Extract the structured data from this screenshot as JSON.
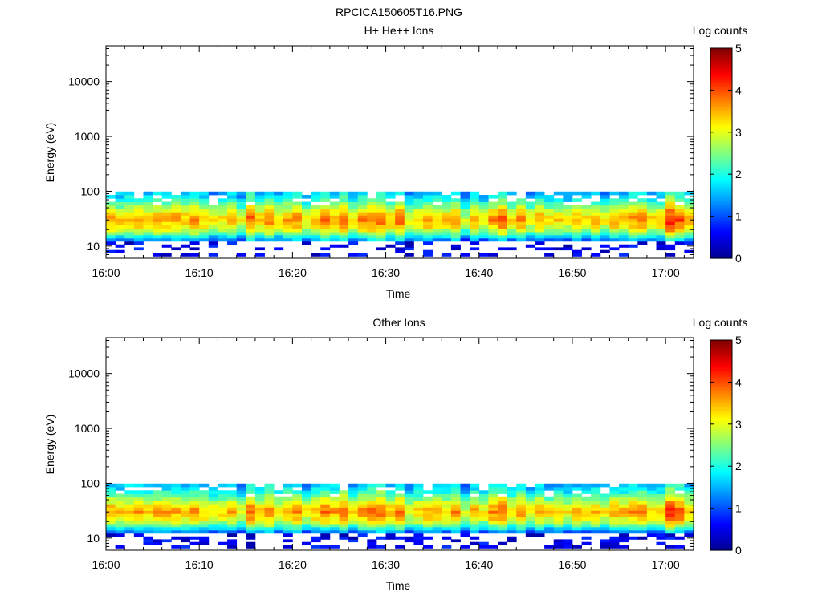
{
  "figure": {
    "title": "RPCICA150605T16.PNG"
  },
  "colormap": [
    "#00008f",
    "#0000ff",
    "#0080ff",
    "#00ffff",
    "#80ff80",
    "#ffff00",
    "#ff8000",
    "#ff0000",
    "#800000"
  ],
  "chart_data": [
    {
      "type": "heatmap",
      "title": "H+ He++ Ions",
      "xlabel": "Time",
      "ylabel": "Energy (eV)",
      "x_ticks": [
        "16:00",
        "16:10",
        "16:20",
        "16:30",
        "16:40",
        "16:50",
        "17:00"
      ],
      "y_ticks": [
        "10",
        "100",
        "1000",
        "10000"
      ],
      "y_scale": "log",
      "x_range": [
        "16:00",
        "17:03"
      ],
      "y_range": [
        6,
        45000
      ],
      "colorbar": {
        "label": "Log counts",
        "ticks": [
          "0",
          "1",
          "2",
          "3",
          "4",
          "5"
        ],
        "range": [
          0,
          5
        ]
      },
      "profile_energies_eV": [
        7,
        8,
        9,
        10,
        11.5,
        13,
        15,
        17,
        19.5,
        22.5,
        26,
        30,
        34,
        39,
        45,
        52,
        60,
        69,
        80,
        92
      ],
      "profile_log_counts": [
        0.35,
        0.45,
        0.5,
        0.7,
        0.9,
        1.3,
        1.8,
        2.3,
        2.7,
        3.0,
        3.2,
        3.4,
        3.3,
        3.1,
        2.8,
        2.5,
        2.2,
        1.9,
        1.7,
        1.5
      ],
      "time_minutes": [
        0,
        1,
        2,
        3,
        4,
        5,
        6,
        7,
        8,
        9,
        10,
        11,
        12,
        13,
        14,
        15,
        16,
        17,
        18,
        19,
        20,
        21,
        22,
        23,
        24,
        25,
        26,
        27,
        28,
        29,
        30,
        31,
        32,
        33,
        34,
        35,
        36,
        37,
        38,
        39,
        40,
        41,
        42,
        43,
        44,
        45,
        46,
        47,
        48,
        49,
        50,
        51,
        52,
        53,
        54,
        55,
        56,
        57,
        58,
        59,
        60,
        61,
        62
      ],
      "time_intensity": [
        0.25,
        0.0,
        0.15,
        0.2,
        0.1,
        0.25,
        0.15,
        0.25,
        0.1,
        0.3,
        0.05,
        -0.2,
        -0.1,
        0.15,
        -0.3,
        0.55,
        0.1,
        0.4,
        -0.05,
        0.2,
        0.35,
        -0.2,
        0.1,
        0.5,
        0.2,
        0.55,
        -0.1,
        0.3,
        0.45,
        0.6,
        0.1,
        0.55,
        -0.25,
        0.0,
        0.2,
        0.1,
        0.0,
        0.3,
        -0.5,
        0.15,
        -0.2,
        0.3,
        0.55,
        -0.1,
        0.35,
        -0.2,
        0.2,
        -0.1,
        0.0,
        -0.2,
        0.1,
        -0.1,
        0.1,
        -0.2,
        0.2,
        0.05,
        0.3,
        0.35,
        -0.05,
        0.05,
        0.85,
        0.6,
        0.1
      ]
    },
    {
      "type": "heatmap",
      "title": "Other Ions",
      "xlabel": "Time",
      "ylabel": "Energy (eV)",
      "x_ticks": [
        "16:00",
        "16:10",
        "16:20",
        "16:30",
        "16:40",
        "16:50",
        "17:00"
      ],
      "y_ticks": [
        "10",
        "100",
        "1000",
        "10000"
      ],
      "y_scale": "log",
      "x_range": [
        "16:00",
        "17:03"
      ],
      "y_range": [
        6,
        45000
      ],
      "colorbar": {
        "label": "Log counts",
        "ticks": [
          "0",
          "1",
          "2",
          "3",
          "4",
          "5"
        ],
        "range": [
          0,
          5
        ]
      },
      "profile_energies_eV": [
        7,
        8,
        9,
        10,
        11.5,
        13,
        15,
        17,
        19.5,
        22.5,
        26,
        30,
        34,
        39,
        45,
        52,
        60,
        69,
        80,
        92
      ],
      "profile_log_counts": [
        0.3,
        0.4,
        0.45,
        0.6,
        0.8,
        1.2,
        1.7,
        2.2,
        2.7,
        3.0,
        3.2,
        3.4,
        3.3,
        3.1,
        2.8,
        2.5,
        2.2,
        1.9,
        1.7,
        1.5
      ],
      "time_minutes": [
        0,
        1,
        2,
        3,
        4,
        5,
        6,
        7,
        8,
        9,
        10,
        11,
        12,
        13,
        14,
        15,
        16,
        17,
        18,
        19,
        20,
        21,
        22,
        23,
        24,
        25,
        26,
        27,
        28,
        29,
        30,
        31,
        32,
        33,
        34,
        35,
        36,
        37,
        38,
        39,
        40,
        41,
        42,
        43,
        44,
        45,
        46,
        47,
        48,
        49,
        50,
        51,
        52,
        53,
        54,
        55,
        56,
        57,
        58,
        59,
        60,
        61,
        62
      ],
      "time_intensity": [
        0.2,
        0.0,
        0.15,
        0.2,
        0.1,
        0.2,
        0.15,
        0.2,
        0.1,
        0.25,
        0.05,
        -0.2,
        -0.1,
        0.1,
        -0.3,
        0.5,
        0.1,
        0.4,
        -0.05,
        0.2,
        0.3,
        -0.2,
        0.1,
        0.45,
        0.2,
        0.5,
        -0.1,
        0.3,
        0.4,
        0.55,
        0.1,
        0.5,
        -0.25,
        0.0,
        0.2,
        0.1,
        0.0,
        0.3,
        -0.5,
        0.15,
        -0.2,
        0.3,
        0.5,
        -0.1,
        0.3,
        -0.2,
        0.2,
        -0.1,
        0.0,
        -0.2,
        0.1,
        -0.1,
        0.1,
        -0.2,
        0.2,
        0.05,
        0.3,
        0.3,
        -0.05,
        0.05,
        0.8,
        0.55,
        0.1
      ]
    }
  ]
}
